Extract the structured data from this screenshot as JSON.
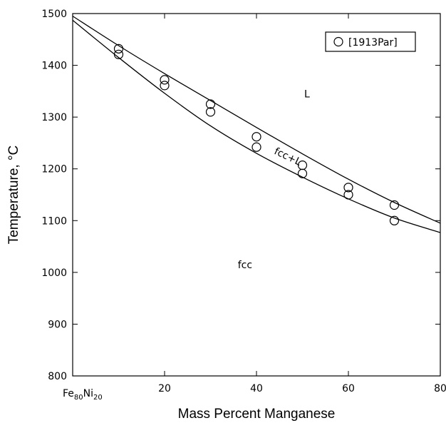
{
  "chart_data": {
    "type": "scatter",
    "title": "",
    "xlabel": "Mass Percent Manganese",
    "ylabel": "Temperature, °C",
    "xlim": [
      0,
      80
    ],
    "ylim": [
      800,
      1500
    ],
    "x_ticks": [
      20,
      40,
      60,
      80
    ],
    "x_tick_labels": [
      "20",
      "40",
      "60",
      "80"
    ],
    "x_origin_label": {
      "base1": "Fe",
      "sub1": "80",
      "base2": "Ni",
      "sub2": "20"
    },
    "y_ticks": [
      800,
      900,
      1000,
      1100,
      1200,
      1300,
      1400,
      1500
    ],
    "y_tick_labels": [
      "800",
      "900",
      "1000",
      "1100",
      "1200",
      "1300",
      "1400",
      "1500"
    ],
    "grid": false,
    "legend_position": "top-right",
    "series": [
      {
        "name": "[1913Par]",
        "marker": "open-circle",
        "points": [
          {
            "x": 10,
            "y": 1432
          },
          {
            "x": 10,
            "y": 1421
          },
          {
            "x": 20,
            "y": 1372
          },
          {
            "x": 20,
            "y": 1361
          },
          {
            "x": 30,
            "y": 1325
          },
          {
            "x": 30,
            "y": 1310
          },
          {
            "x": 40,
            "y": 1262
          },
          {
            "x": 40,
            "y": 1242
          },
          {
            "x": 50,
            "y": 1207
          },
          {
            "x": 50,
            "y": 1191
          },
          {
            "x": 60,
            "y": 1164
          },
          {
            "x": 60,
            "y": 1150
          },
          {
            "x": 70,
            "y": 1130
          },
          {
            "x": 70,
            "y": 1100
          }
        ]
      }
    ],
    "phase_boundaries": [
      {
        "name": "liquidus",
        "points": [
          {
            "x": 0,
            "y": 1495
          },
          {
            "x": 10,
            "y": 1438
          },
          {
            "x": 20,
            "y": 1384
          },
          {
            "x": 30,
            "y": 1332
          },
          {
            "x": 40,
            "y": 1280
          },
          {
            "x": 50,
            "y": 1229
          },
          {
            "x": 60,
            "y": 1180
          },
          {
            "x": 70,
            "y": 1135
          },
          {
            "x": 80,
            "y": 1095
          }
        ]
      },
      {
        "name": "solidus",
        "points": [
          {
            "x": 0,
            "y": 1487
          },
          {
            "x": 10,
            "y": 1415
          },
          {
            "x": 20,
            "y": 1346
          },
          {
            "x": 30,
            "y": 1283
          },
          {
            "x": 40,
            "y": 1230
          },
          {
            "x": 50,
            "y": 1184
          },
          {
            "x": 60,
            "y": 1142
          },
          {
            "x": 70,
            "y": 1105
          },
          {
            "x": 80,
            "y": 1077
          }
        ]
      }
    ],
    "region_labels": [
      {
        "text": "L",
        "x": 51,
        "y": 1338
      },
      {
        "text": "fcc+L",
        "x": 46.5,
        "y": 1218,
        "rotation": 25
      },
      {
        "text": "fcc",
        "x": 37.5,
        "y": 1008
      }
    ]
  }
}
